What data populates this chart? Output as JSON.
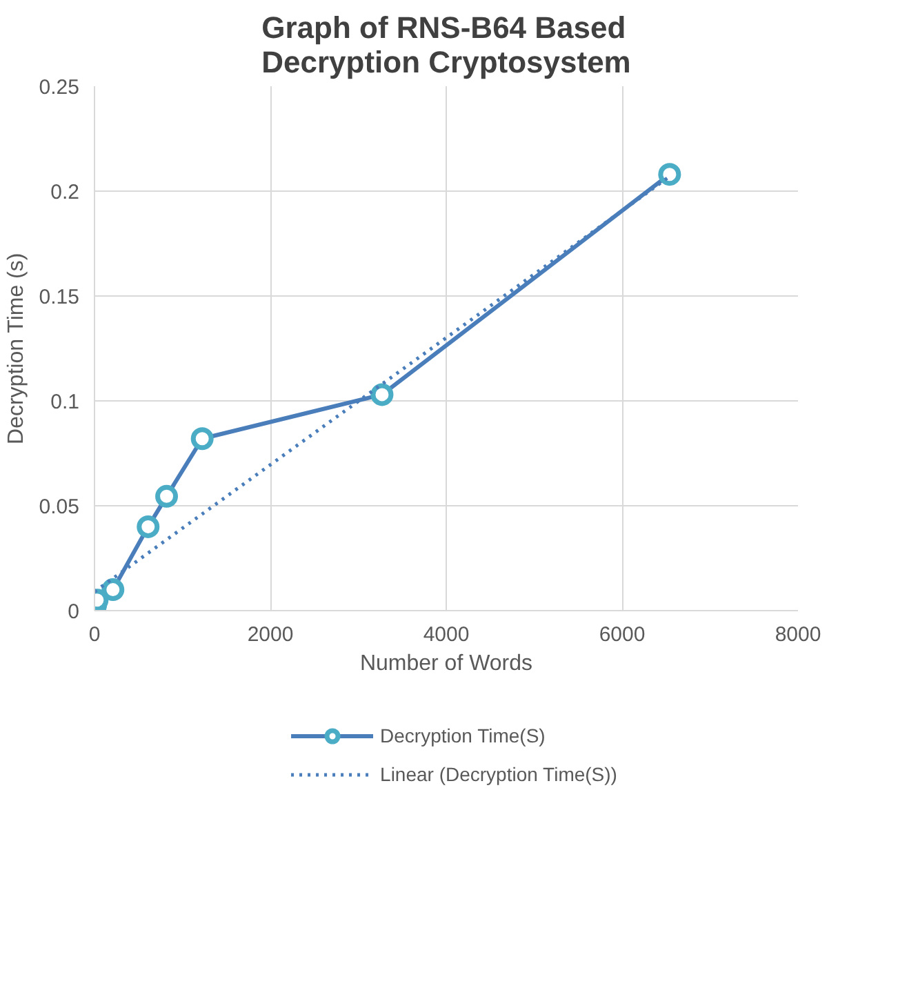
{
  "chart_data": {
    "type": "line",
    "title": "Graph of RNS-B64 Based Decryption Cryptosystem",
    "xlabel": "Number of Words",
    "ylabel": "Decryption Time (s)",
    "xlim": [
      0,
      8000
    ],
    "xticks": [
      0,
      2000,
      4000,
      6000,
      8000
    ],
    "ylim": [
      0,
      0.25
    ],
    "yticks": [
      0,
      0.05,
      0.1,
      0.15,
      0.2,
      0.25
    ],
    "grid": true,
    "legend": "bottom",
    "series": [
      {
        "name": "Decryption Time(S)",
        "color": "#4a7ebb",
        "marker": "circle",
        "line_style": "solid",
        "x": [
          5,
          15,
          30,
          210,
          610,
          820,
          1225,
          3270,
          6540
        ],
        "values": [
          0.001,
          0.003,
          0.005,
          0.01,
          0.04,
          0.0545,
          0.082,
          0.103,
          0.208
        ]
      },
      {
        "name": "Linear (Decryption Time(S))",
        "color": "#4a7ebb",
        "marker": "none",
        "line_style": "dotted",
        "x": [
          0,
          6540
        ],
        "values": [
          0.009,
          0.207
        ]
      }
    ]
  }
}
